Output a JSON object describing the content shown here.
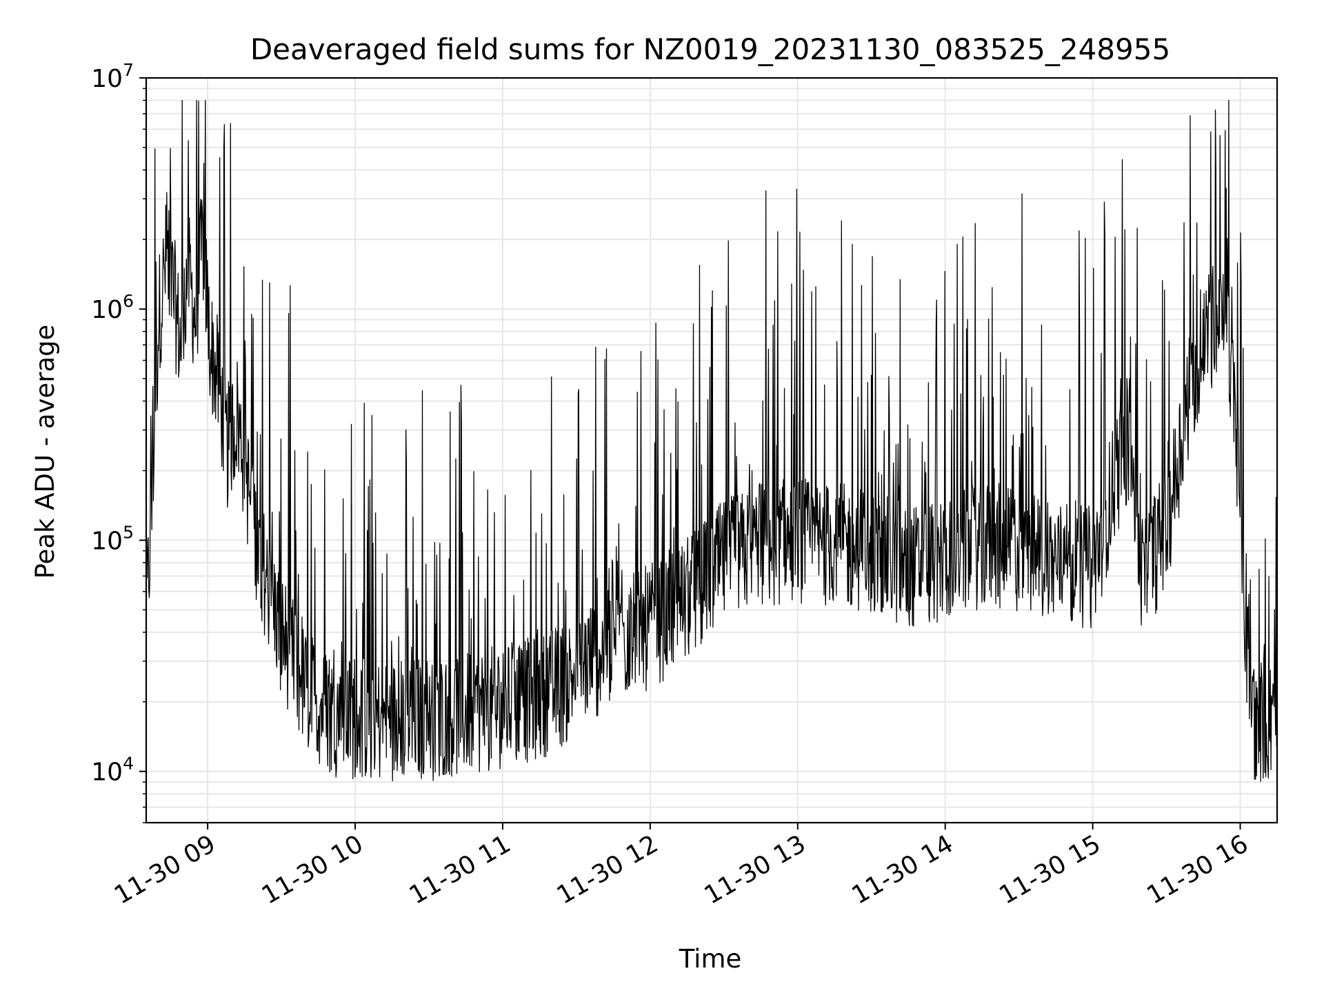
{
  "chart_data": {
    "type": "line",
    "title": "Deaveraged field sums for NZ0019_20231130_083525_248955",
    "xlabel": "Time",
    "ylabel": "Peak ADU - average",
    "yscale": "log",
    "ylim": [
      6000,
      10000000
    ],
    "xlim": [
      "2023-11-30 08:35",
      "2023-11-30 16:15"
    ],
    "x_ticks": [
      "11-30 09",
      "11-30 10",
      "11-30 11",
      "11-30 12",
      "11-30 13",
      "11-30 14",
      "11-30 15",
      "11-30 16"
    ],
    "y_ticks": [
      {
        "base": "10",
        "exp": "4"
      },
      {
        "base": "10",
        "exp": "5"
      },
      {
        "base": "10",
        "exp": "6"
      },
      {
        "base": "10",
        "exp": "7"
      }
    ],
    "grid": true,
    "line_color": "#000000",
    "grid_color": "#e6e6e6",
    "series": [
      {
        "values": [
          [
            "2023-11-30 08:35",
            45000
          ],
          [
            "2023-11-30 08:37",
            120000
          ],
          [
            "2023-11-30 08:40",
            900000
          ],
          [
            "2023-11-30 08:43",
            1600000
          ],
          [
            "2023-11-30 08:46",
            1200000
          ],
          [
            "2023-11-30 08:49",
            700000
          ],
          [
            "2023-11-30 08:52",
            1500000
          ],
          [
            "2023-11-30 08:55",
            900000
          ],
          [
            "2023-11-30 08:58",
            2000000
          ],
          [
            "2023-11-30 09:01",
            700000
          ],
          [
            "2023-11-30 09:04",
            500000
          ],
          [
            "2023-11-30 09:08",
            250000
          ],
          [
            "2023-11-30 09:12",
            350000
          ],
          [
            "2023-11-30 09:16",
            180000
          ],
          [
            "2023-11-30 09:20",
            100000
          ],
          [
            "2023-11-30 09:25",
            60000
          ],
          [
            "2023-11-30 09:30",
            40000
          ],
          [
            "2023-11-30 09:35",
            30000
          ],
          [
            "2023-11-30 09:40",
            22000
          ],
          [
            "2023-11-30 09:50",
            18000
          ],
          [
            "2023-11-30 10:00",
            17000
          ],
          [
            "2023-11-30 10:15",
            16500
          ],
          [
            "2023-11-30 10:30",
            17000
          ],
          [
            "2023-11-30 10:45",
            18000
          ],
          [
            "2023-11-30 11:00",
            19000
          ],
          [
            "2023-11-30 11:15",
            21000
          ],
          [
            "2023-11-30 11:25",
            24000
          ],
          [
            "2023-11-30 11:35",
            30000
          ],
          [
            "2023-11-30 11:45",
            36000
          ],
          [
            "2023-11-30 12:00",
            42000
          ],
          [
            "2023-11-30 12:15",
            55000
          ],
          [
            "2023-11-30 12:30",
            80000
          ],
          [
            "2023-11-30 12:45",
            95000
          ],
          [
            "2023-11-30 13:00",
            100000
          ],
          [
            "2023-11-30 13:15",
            95000
          ],
          [
            "2023-11-30 13:30",
            90000
          ],
          [
            "2023-11-30 13:45",
            75000
          ],
          [
            "2023-11-30 14:00",
            85000
          ],
          [
            "2023-11-30 14:15",
            95000
          ],
          [
            "2023-11-30 14:30",
            90000
          ],
          [
            "2023-11-30 14:45",
            80000
          ],
          [
            "2023-11-30 15:00",
            75000
          ],
          [
            "2023-11-30 15:10",
            200000
          ],
          [
            "2023-11-30 15:15",
            280000
          ],
          [
            "2023-11-30 15:20",
            70000
          ],
          [
            "2023-11-30 15:30",
            110000
          ],
          [
            "2023-11-30 15:40",
            500000
          ],
          [
            "2023-11-30 15:50",
            900000
          ],
          [
            "2023-11-30 15:55",
            850000
          ],
          [
            "2023-11-30 15:58",
            350000
          ],
          [
            "2023-11-30 16:00",
            120000
          ],
          [
            "2023-11-30 16:03",
            30000
          ],
          [
            "2023-11-30 16:06",
            16000
          ],
          [
            "2023-11-30 16:10",
            17000
          ],
          [
            "2023-11-30 16:15",
            15000
          ]
        ]
      }
    ]
  }
}
